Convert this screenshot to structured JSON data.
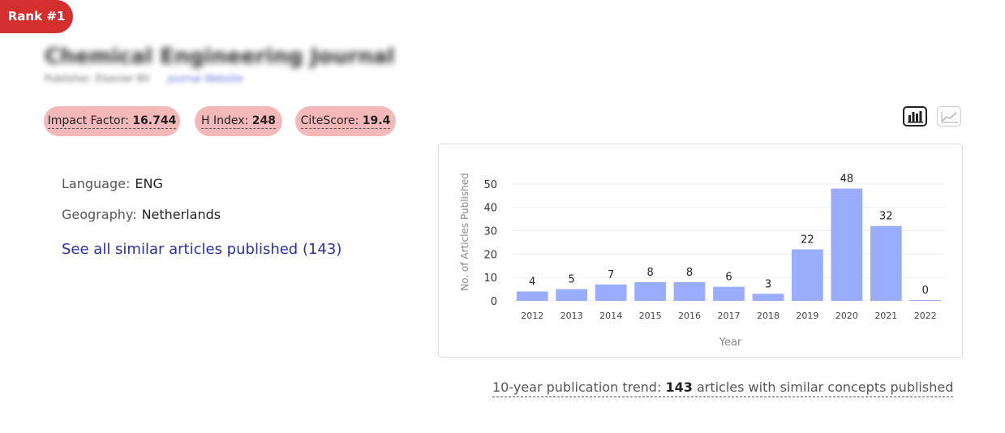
{
  "rank_badge": "Rank #1",
  "journal": {
    "title": "Chemical Engineering Journal",
    "publisher": "Publisher: Elsevier BV",
    "link": "Journal Website"
  },
  "metrics": [
    {
      "label": "Impact Factor:",
      "value": "16.744"
    },
    {
      "label": "H Index:",
      "value": "248"
    },
    {
      "label": "CiteScore:",
      "value": "19.4"
    }
  ],
  "view_toggle": {
    "bar_icon": "bar-chart-icon",
    "line_icon": "line-chart-icon"
  },
  "info": {
    "language_label": "Language:",
    "language": "ENG",
    "geography_label": "Geography:",
    "geography": "Netherlands"
  },
  "similar_link": "See all similar articles published (143)",
  "colors": {
    "bar": "#9aadfb",
    "badge": "#d32f2f",
    "pill": "#f5b8b8",
    "link": "#2b2fa6"
  },
  "chart_data": {
    "type": "bar",
    "categories": [
      "2012",
      "2013",
      "2014",
      "2015",
      "2016",
      "2017",
      "2018",
      "2019",
      "2020",
      "2021",
      "2022"
    ],
    "values": [
      4,
      5,
      7,
      8,
      8,
      6,
      3,
      22,
      48,
      32,
      0
    ],
    "xlabel": "Year",
    "ylabel": "No. of Articles Published",
    "yticks": [
      0,
      10,
      20,
      30,
      40,
      50
    ],
    "ylim": [
      0,
      52
    ],
    "grid": true
  },
  "trend": {
    "prefix": "10-year publication trend:",
    "count": "143",
    "suffix": "articles with similar concepts published"
  }
}
